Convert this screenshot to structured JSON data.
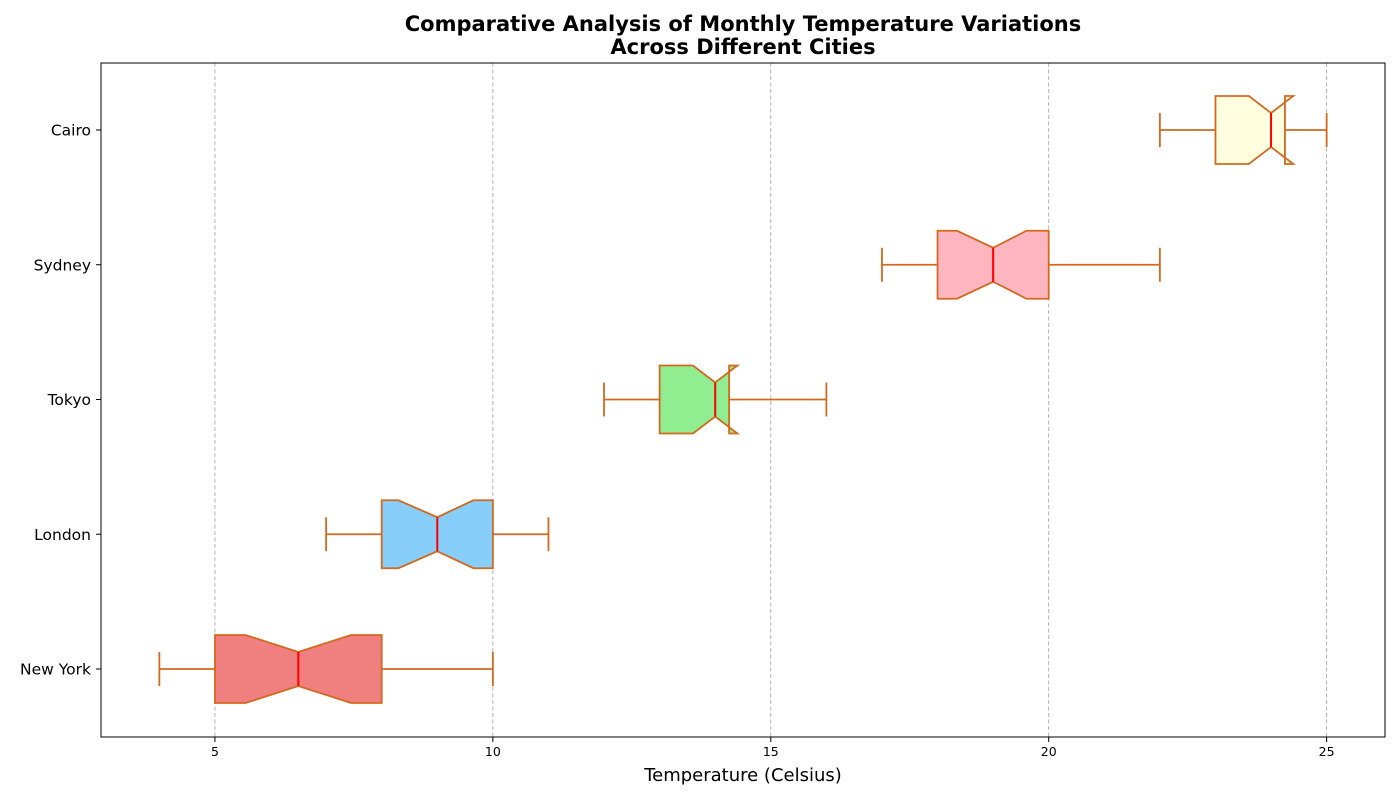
{
  "chart_data": {
    "type": "boxplot",
    "orientation": "horizontal",
    "notched": true,
    "title_lines": [
      "Comparative Analysis of Monthly Temperature Variations",
      "Across Different Cities"
    ],
    "xlabel": "Temperature (Celsius)",
    "ylabel": "",
    "xlim": [
      2.95,
      26.05
    ],
    "xticks": [
      5,
      10,
      15,
      20,
      25
    ],
    "grid": {
      "axis": "x",
      "style": "dashed",
      "color": "#a0a0a0"
    },
    "colors": {
      "edge": "#d2691e",
      "median": "#ff0000"
    },
    "series": [
      {
        "name": "New York",
        "whisker_low": 4,
        "q1": 5,
        "median": 6.5,
        "q3": 8,
        "whisker_high": 10,
        "notch_low": 5.55,
        "notch_high": 7.45,
        "color": "#f08080"
      },
      {
        "name": "London",
        "whisker_low": 7,
        "q1": 8,
        "median": 9,
        "q3": 10,
        "whisker_high": 11,
        "notch_low": 8.3,
        "notch_high": 9.65,
        "color": "#87cefa"
      },
      {
        "name": "Tokyo",
        "whisker_low": 12,
        "q1": 13,
        "median": 14,
        "q3": 14.25,
        "whisker_high": 16,
        "notch_low": 13.6,
        "notch_high": 14.4,
        "color": "#90ee90"
      },
      {
        "name": "Sydney",
        "whisker_low": 17,
        "q1": 18,
        "median": 19,
        "q3": 20,
        "whisker_high": 22,
        "notch_low": 18.35,
        "notch_high": 19.6,
        "color": "#ffb6c1"
      },
      {
        "name": "Cairo",
        "whisker_low": 22,
        "q1": 23,
        "median": 24,
        "q3": 24.25,
        "whisker_high": 25,
        "notch_low": 23.6,
        "notch_high": 24.4,
        "color": "#ffffe0"
      }
    ]
  }
}
